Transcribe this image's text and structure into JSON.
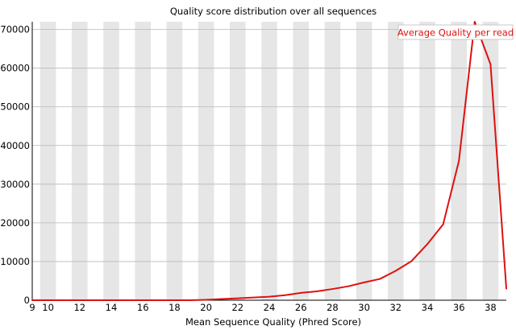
{
  "chart_data": {
    "type": "line",
    "title": "Quality score distribution over all sequences",
    "xlabel": "Mean Sequence Quality (Phred Score)",
    "ylabel": "",
    "xlim": [
      9,
      39
    ],
    "ylim": [
      0,
      72000
    ],
    "x_ticks": [
      "9",
      "10",
      "12",
      "14",
      "16",
      "18",
      "20",
      "22",
      "24",
      "26",
      "28",
      "30",
      "32",
      "34",
      "36",
      "38"
    ],
    "y_ticks": [
      "0",
      "10000",
      "20000",
      "30000",
      "40000",
      "50000",
      "60000",
      "70000"
    ],
    "grid": true,
    "shaded_columns": true,
    "legend_position": "top-right",
    "colors": {
      "line": "#dd1111",
      "band": "#e6e6e6",
      "grid": "#b8b8b8",
      "axis": "#000000"
    },
    "series": [
      {
        "name": "Average Quality per read",
        "x": [
          9,
          10,
          11,
          12,
          13,
          14,
          15,
          16,
          17,
          18,
          19,
          20,
          21,
          22,
          23,
          24,
          25,
          26,
          27,
          28,
          29,
          30,
          31,
          32,
          33,
          34,
          35,
          36,
          37,
          38,
          39
        ],
        "y": [
          0,
          0,
          0,
          0,
          0,
          0,
          0,
          0,
          0,
          0,
          0,
          100,
          300,
          500,
          700,
          900,
          1300,
          1900,
          2300,
          2900,
          3600,
          4600,
          5500,
          7600,
          10100,
          14500,
          19600,
          36000,
          72000,
          61000,
          3000
        ]
      }
    ]
  }
}
